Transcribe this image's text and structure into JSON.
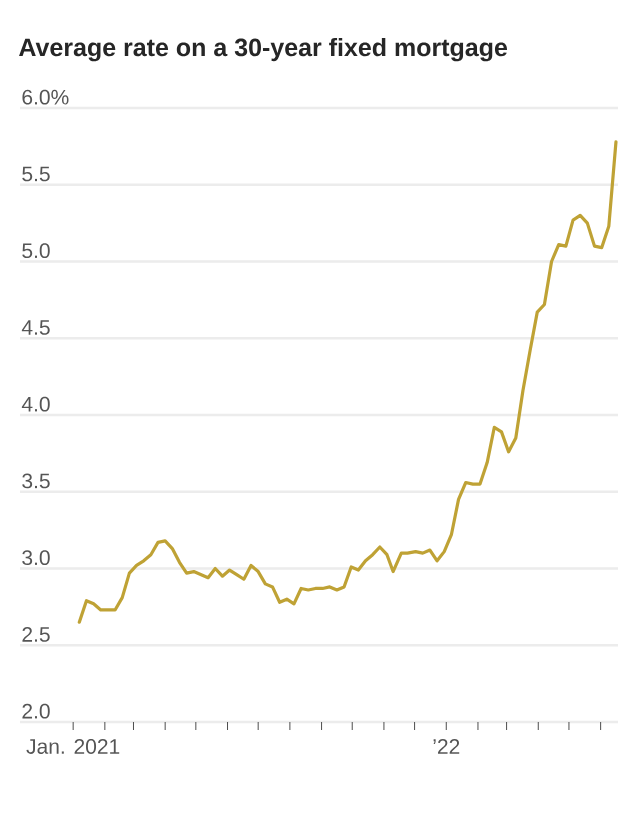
{
  "chart_data": {
    "type": "line",
    "title": "Average rate on a 30-year fixed mortgage",
    "x": [
      "2021-01-07",
      "2021-01-14",
      "2021-01-21",
      "2021-01-28",
      "2021-02-04",
      "2021-02-11",
      "2021-02-18",
      "2021-02-25",
      "2021-03-04",
      "2021-03-11",
      "2021-03-18",
      "2021-03-25",
      "2021-04-01",
      "2021-04-08",
      "2021-04-15",
      "2021-04-22",
      "2021-04-29",
      "2021-05-06",
      "2021-05-13",
      "2021-05-20",
      "2021-05-27",
      "2021-06-03",
      "2021-06-10",
      "2021-06-17",
      "2021-06-24",
      "2021-07-01",
      "2021-07-08",
      "2021-07-15",
      "2021-07-22",
      "2021-07-29",
      "2021-08-05",
      "2021-08-12",
      "2021-08-19",
      "2021-08-26",
      "2021-09-02",
      "2021-09-09",
      "2021-09-16",
      "2021-09-23",
      "2021-09-30",
      "2021-10-07",
      "2021-10-14",
      "2021-10-21",
      "2021-10-28",
      "2021-11-04",
      "2021-11-10",
      "2021-11-18",
      "2021-11-24",
      "2021-12-02",
      "2021-12-09",
      "2021-12-16",
      "2021-12-23",
      "2021-12-30",
      "2022-01-06",
      "2022-01-13",
      "2022-01-20",
      "2022-01-27",
      "2022-02-03",
      "2022-02-10",
      "2022-02-17",
      "2022-02-24",
      "2022-03-03",
      "2022-03-10",
      "2022-03-17",
      "2022-03-24",
      "2022-03-31",
      "2022-04-07",
      "2022-04-14",
      "2022-04-21",
      "2022-04-28",
      "2022-05-05",
      "2022-05-12",
      "2022-05-19",
      "2022-05-26",
      "2022-06-02",
      "2022-06-09",
      "2022-06-16"
    ],
    "series": [
      {
        "color": "#bfa235",
        "values": [
          2.65,
          2.79,
          2.77,
          2.73,
          2.73,
          2.73,
          2.81,
          2.97,
          3.02,
          3.05,
          3.09,
          3.17,
          3.18,
          3.13,
          3.04,
          2.97,
          2.98,
          2.96,
          2.94,
          3.0,
          2.95,
          2.99,
          2.96,
          2.93,
          3.02,
          2.98,
          2.9,
          2.88,
          2.78,
          2.8,
          2.77,
          2.87,
          2.86,
          2.87,
          2.87,
          2.88,
          2.86,
          2.88,
          3.01,
          2.99,
          3.05,
          3.09,
          3.14,
          3.09,
          2.98,
          3.1,
          3.1,
          3.11,
          3.1,
          3.12,
          3.05,
          3.11,
          3.22,
          3.45,
          3.56,
          3.55,
          3.55,
          3.69,
          3.92,
          3.89,
          3.76,
          3.85,
          4.16,
          4.42,
          4.67,
          4.72,
          5.0,
          5.11,
          5.1,
          5.27,
          5.3,
          5.25,
          5.1,
          5.09,
          5.23,
          5.78
        ]
      }
    ],
    "xlim": [
      "2020-11-10",
      "2022-06-18"
    ],
    "xticks": [
      {
        "value": "2021-01-01",
        "label": "Jan. 2021"
      },
      {
        "value": "2021-02-01",
        "label": null
      },
      {
        "value": "2021-03-01",
        "label": null
      },
      {
        "value": "2021-04-01",
        "label": null
      },
      {
        "value": "2021-05-01",
        "label": null
      },
      {
        "value": "2021-06-01",
        "label": null
      },
      {
        "value": "2021-07-01",
        "label": null
      },
      {
        "value": "2021-08-01",
        "label": null
      },
      {
        "value": "2021-09-01",
        "label": null
      },
      {
        "value": "2021-10-01",
        "label": null
      },
      {
        "value": "2021-11-01",
        "label": null
      },
      {
        "value": "2021-12-01",
        "label": null
      },
      {
        "value": "2022-01-01",
        "label": "’22"
      },
      {
        "value": "2022-02-01",
        "label": null
      },
      {
        "value": "2022-03-01",
        "label": null
      },
      {
        "value": "2022-04-01",
        "label": null
      },
      {
        "value": "2022-05-01",
        "label": null
      },
      {
        "value": "2022-06-01",
        "label": null
      }
    ],
    "ylim": [
      2.0,
      6.0
    ],
    "yticks": [
      {
        "value": 2.0,
        "label": "2.0"
      },
      {
        "value": 2.5,
        "label": "2.5"
      },
      {
        "value": 3.0,
        "label": "3.0"
      },
      {
        "value": 3.5,
        "label": "3.5"
      },
      {
        "value": 4.0,
        "label": "4.0"
      },
      {
        "value": 4.5,
        "label": "4.5"
      },
      {
        "value": 5.0,
        "label": "5.0"
      },
      {
        "value": 5.5,
        "label": "5.5"
      },
      {
        "value": 6.0,
        "label": "6.0%"
      }
    ],
    "grid": "y"
  }
}
